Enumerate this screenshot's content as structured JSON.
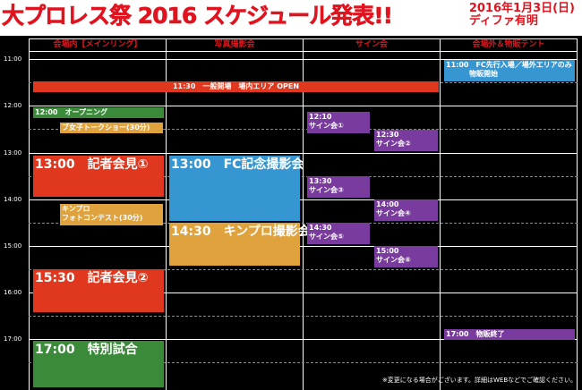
{
  "title": "大プロレス祭 2016 スケジュール発表!!",
  "date_line1": "2016年1月3日(日)",
  "date_line2": "ディファ有明",
  "headers": [
    "会場内【メインリング】",
    "写真撮影会",
    "サイン会",
    "会場外＆物販テント"
  ],
  "times": [
    "11:00",
    "12:00",
    "13:00",
    "14:00",
    "15:00",
    "16:00",
    "17:00"
  ],
  "events": {
    "general_open": "11:30　一般開場　場内エリア OPEN",
    "fc_entry_line1": "11:00　FC先行入場／場外エリアのみ",
    "fc_entry_line2": "物販開始",
    "opening": "12:00　オープニング",
    "talk_show": "ブ女子トークショー(30分)",
    "sign1_time": "12:10",
    "sign1_label": "サイン会①",
    "sign2_time": "12:30",
    "sign2_label": "サイン会②",
    "press1": "13:00　記者会見①",
    "fc_photo": "13:00　FC記念撮影会",
    "sign3_time": "13:30",
    "sign3_label": "サイン会③",
    "photo_contest_line1": "キンプロ",
    "photo_contest_line2": "フォトコンテスト(30分)",
    "sign4_time": "14:00",
    "sign4_label": "サイン会④",
    "kinpro_photo": "14:30　キンプロ撮影会",
    "sign5_time": "14:30",
    "sign5_label": "サイン会⑤",
    "sign6_time": "15:00",
    "sign6_label": "サイン会⑥",
    "press2": "15:30　記者会見②",
    "merch_end": "17:00　物販終了",
    "special_match": "17:00　特別試合"
  },
  "note": "※変更になる場合がございます。詳細はWEBなどでご確認ください。",
  "colors": {
    "title_red": "#e0141e",
    "event_red": "#e0381e",
    "event_green": "#3a8a3a",
    "event_blue": "#3596d1",
    "event_orange": "#e0a23c",
    "event_purple": "#7a3b9e",
    "board_bg": "#000000"
  }
}
